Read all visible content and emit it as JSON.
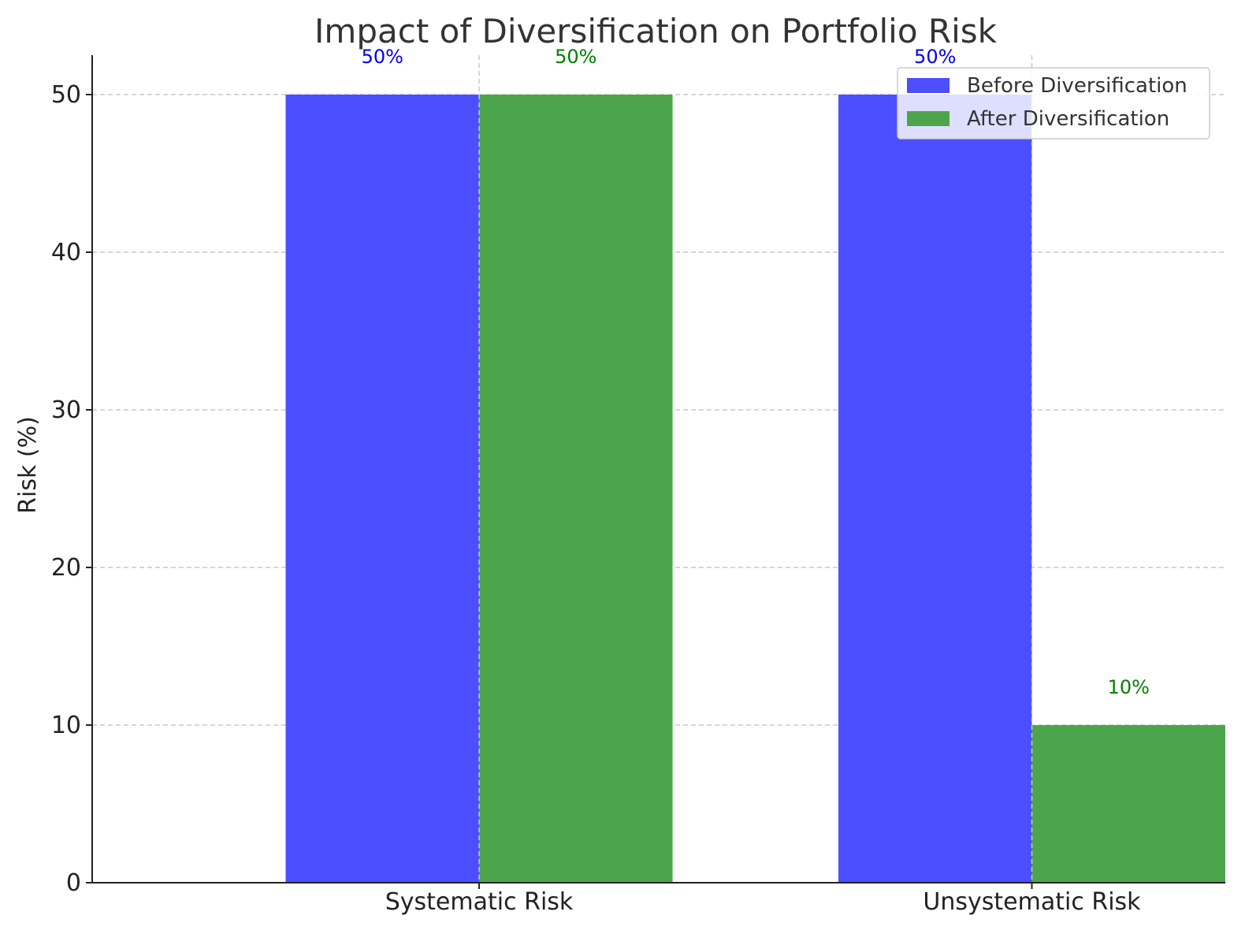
{
  "chart_data": {
    "type": "bar",
    "title": "Impact of Diversification on Portfolio Risk",
    "xlabel": "",
    "ylabel": "Risk (%)",
    "categories": [
      "Systematic Risk",
      "Unsystematic Risk"
    ],
    "series": [
      {
        "name": "Before Diversification",
        "values": [
          50,
          50
        ],
        "color": "#4b4fff",
        "label_color": "#0000ee",
        "data_labels": [
          "50%",
          "50%"
        ]
      },
      {
        "name": "After Diversification",
        "values": [
          50,
          10
        ],
        "color": "#4ca54a",
        "label_color": "#008000",
        "data_labels": [
          "50%",
          "10%"
        ]
      }
    ],
    "ylim": [
      0,
      52.5
    ],
    "yticks": [
      0,
      10,
      20,
      30,
      40,
      50
    ],
    "ytick_labels": [
      "0",
      "10",
      "20",
      "30",
      "40",
      "50"
    ],
    "grid": true,
    "legend": "top-right"
  }
}
